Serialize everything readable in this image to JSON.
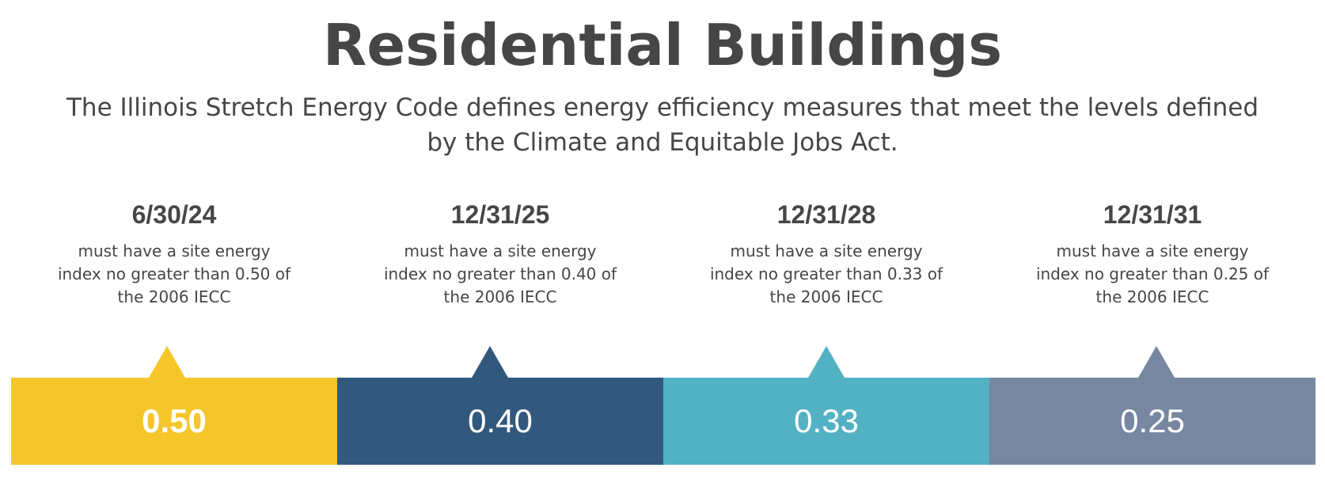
{
  "title": "Residential Buildings",
  "subtitle": "The Illinois Stretch Energy Code defines energy efficiency measures that meet the levels defined by the Climate and Equitable Jobs Act.",
  "milestones": [
    {
      "date": "6/30/24",
      "description": "must have a site energy index no greater than 0.50 of the 2006 IECC",
      "value": "0.50",
      "color": "#F5C629"
    },
    {
      "date": "12/31/25",
      "description": "must have a site energy index no greater than 0.40 of the 2006 IECC",
      "value": "0.40",
      "color": "#32597D"
    },
    {
      "date": "12/31/28",
      "description": "must have a site energy index no greater than 0.33 of the 2006 IECC",
      "value": "0.33",
      "color": "#53B1C4"
    },
    {
      "date": "12/31/31",
      "description": "must have a site energy index no greater than 0.25 of the 2006 IECC",
      "value": "0.25",
      "color": "#7787A1"
    }
  ]
}
